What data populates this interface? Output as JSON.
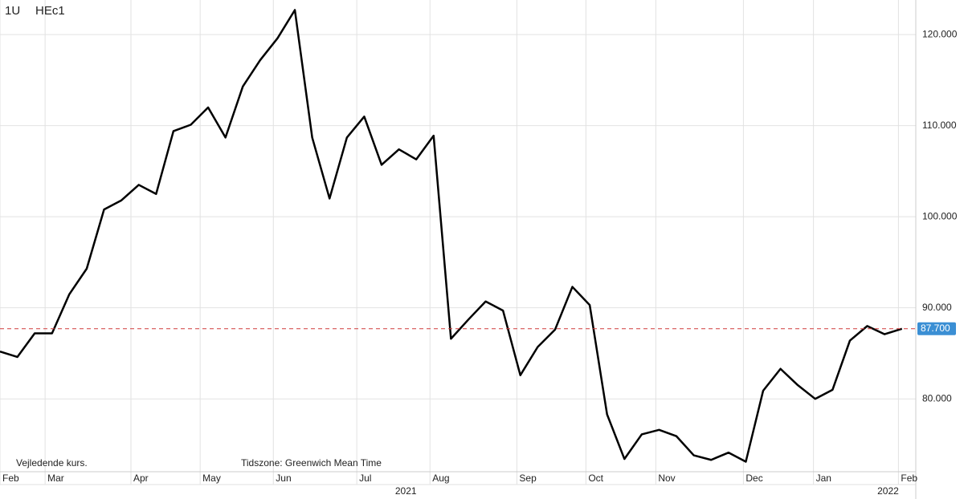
{
  "chart_data": {
    "type": "line",
    "symbol": "1U",
    "title": "HEc1",
    "note": "Vejledende kurs.",
    "timezone": "Tidszone: Greenwich Mean Time",
    "last_label": "87.700",
    "series": [
      {
        "name": "HEc1",
        "color": "#000000",
        "values": [
          85.2,
          84.6,
          87.2,
          87.2,
          91.5,
          94.3,
          100.8,
          101.8,
          103.5,
          102.5,
          109.4,
          110.1,
          112.0,
          108.7,
          114.3,
          117.2,
          119.6,
          122.7,
          108.7,
          102.0,
          108.7,
          111.0,
          105.7,
          107.4,
          106.3,
          108.9,
          86.6,
          88.7,
          90.7,
          89.7,
          82.6,
          85.7,
          87.6,
          92.3,
          90.3,
          78.3,
          73.4,
          76.1,
          76.6,
          75.9,
          73.8,
          73.3,
          74.1,
          73.1,
          80.9,
          83.3,
          81.5,
          80.0,
          81.0,
          86.4,
          88.0,
          87.1,
          87.7
        ]
      }
    ],
    "xlim": [
      0,
      52.8
    ],
    "xticks": [
      {
        "value": 0,
        "label": "Feb"
      },
      {
        "value": 2.6,
        "label": "Mar"
      },
      {
        "value": 7.55,
        "label": "Apr"
      },
      {
        "value": 11.54,
        "label": "May"
      },
      {
        "value": 15.76,
        "label": "Jun"
      },
      {
        "value": 20.57,
        "label": "Jul"
      },
      {
        "value": 24.79,
        "label": "Aug"
      },
      {
        "value": 29.8,
        "label": "Sep"
      },
      {
        "value": 33.78,
        "label": "Oct"
      },
      {
        "value": 37.81,
        "label": "Nov"
      },
      {
        "value": 42.86,
        "label": "Dec"
      },
      {
        "value": 46.9,
        "label": "Jan"
      },
      {
        "value": 51.8,
        "label": "Feb"
      }
    ],
    "year_ticks": [
      {
        "value": 23.4,
        "label": "2021"
      },
      {
        "value": 51.2,
        "label": "2022"
      }
    ],
    "ylim": [
      72.0,
      123.8
    ],
    "yticks": [
      {
        "value": 80,
        "label": "80.000"
      },
      {
        "value": 90,
        "label": "90.000"
      },
      {
        "value": 100,
        "label": "100.000"
      },
      {
        "value": 110,
        "label": "110.000"
      },
      {
        "value": 120,
        "label": "120.000"
      }
    ],
    "grid": true,
    "reference_line_color": "#d03a3a",
    "last_label_color": "#3b8fd4"
  }
}
